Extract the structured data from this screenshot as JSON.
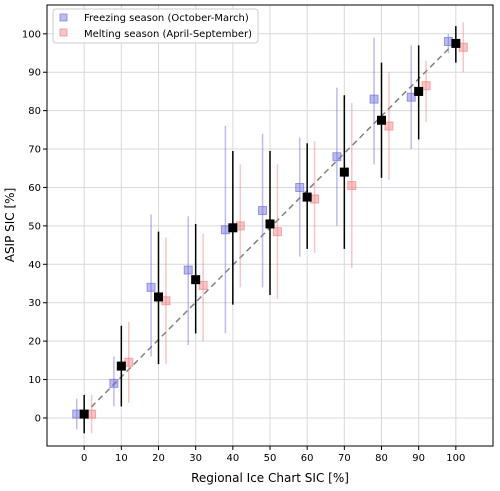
{
  "chart_data": {
    "type": "scatter",
    "title": "",
    "xlabel": "Regional Ice Chart SIC [%]",
    "ylabel": "ASIP SIC [%]",
    "xlim": [
      -10,
      110
    ],
    "ylim": [
      -7.3,
      107.5
    ],
    "x_ticks": [
      0,
      10,
      20,
      30,
      40,
      50,
      60,
      70,
      80,
      90,
      100
    ],
    "y_ticks": [
      0,
      10,
      20,
      30,
      40,
      50,
      60,
      70,
      80,
      90,
      100
    ],
    "grid": true,
    "legend_position": "top-left",
    "reference_line": {
      "style": "dashed",
      "color": "#808080",
      "from": [
        0,
        1
      ],
      "to": [
        100,
        98
      ]
    },
    "series": [
      {
        "name": "Freezing season (October-March)",
        "color": "#6b6bd9",
        "marker": "square",
        "points": [
          {
            "x": -2,
            "y": 1,
            "lo": -3,
            "hi": 5
          },
          {
            "x": 8,
            "y": 9,
            "lo": 3,
            "hi": 16
          },
          {
            "x": 18,
            "y": 34,
            "lo": 16,
            "hi": 53
          },
          {
            "x": 28,
            "y": 38.5,
            "lo": 19,
            "hi": 52.5
          },
          {
            "x": 38,
            "y": 49,
            "lo": 22,
            "hi": 76
          },
          {
            "x": 48,
            "y": 54,
            "lo": 34,
            "hi": 74
          },
          {
            "x": 58,
            "y": 60,
            "lo": 42,
            "hi": 73
          },
          {
            "x": 68,
            "y": 68,
            "lo": 50,
            "hi": 86
          },
          {
            "x": 78,
            "y": 83,
            "lo": 66,
            "hi": 99
          },
          {
            "x": 88,
            "y": 83.5,
            "lo": 70,
            "hi": 97
          },
          {
            "x": 98,
            "y": 98,
            "lo": 95,
            "hi": 100
          }
        ]
      },
      {
        "name": "Melting season (April-September)",
        "color": "#f08080",
        "marker": "square",
        "points": [
          {
            "x": 2,
            "y": 1,
            "lo": -4,
            "hi": 6
          },
          {
            "x": 12,
            "y": 14.5,
            "lo": 4,
            "hi": 25
          },
          {
            "x": 22,
            "y": 30.5,
            "lo": 14,
            "hi": 47
          },
          {
            "x": 32,
            "y": 34.5,
            "lo": 20,
            "hi": 48
          },
          {
            "x": 42,
            "y": 50,
            "lo": 34,
            "hi": 66
          },
          {
            "x": 52,
            "y": 48.5,
            "lo": 31,
            "hi": 66
          },
          {
            "x": 62,
            "y": 57,
            "lo": 43,
            "hi": 72
          },
          {
            "x": 72,
            "y": 60.5,
            "lo": 39,
            "hi": 82
          },
          {
            "x": 82,
            "y": 76,
            "lo": 62,
            "hi": 90
          },
          {
            "x": 92,
            "y": 86.5,
            "lo": 77,
            "hi": 93
          },
          {
            "x": 102,
            "y": 96.5,
            "lo": 90,
            "hi": 103
          }
        ]
      },
      {
        "color": "#000000",
        "marker": "square",
        "points": [
          {
            "x": 0,
            "y": 1,
            "lo": -4,
            "hi": 6
          },
          {
            "x": 10,
            "y": 13.5,
            "lo": 3,
            "hi": 24
          },
          {
            "x": 20,
            "y": 31.5,
            "lo": 14,
            "hi": 48.5
          },
          {
            "x": 30,
            "y": 36,
            "lo": 22,
            "hi": 50.5
          },
          {
            "x": 40,
            "y": 49.5,
            "lo": 29.5,
            "hi": 69.5
          },
          {
            "x": 50,
            "y": 50.5,
            "lo": 32,
            "hi": 69.5
          },
          {
            "x": 60,
            "y": 57.5,
            "lo": 44,
            "hi": 71.5
          },
          {
            "x": 70,
            "y": 64,
            "lo": 44,
            "hi": 84
          },
          {
            "x": 80,
            "y": 77.5,
            "lo": 62.5,
            "hi": 92.5
          },
          {
            "x": 90,
            "y": 85,
            "lo": 72.5,
            "hi": 97
          },
          {
            "x": 100,
            "y": 97.5,
            "lo": 92.5,
            "hi": 102
          }
        ]
      }
    ]
  }
}
